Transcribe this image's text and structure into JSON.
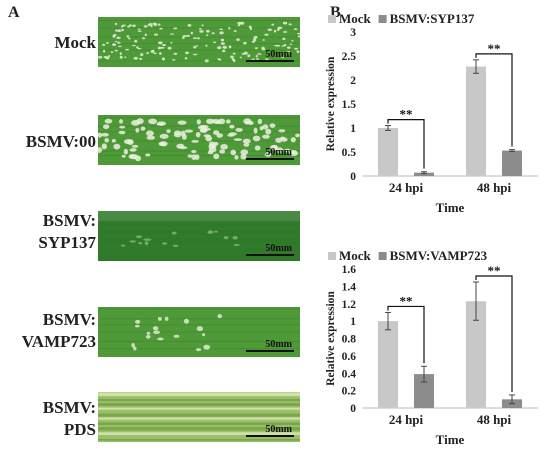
{
  "panels": {
    "a": "A",
    "b": "B"
  },
  "leaves": [
    {
      "label_lines": [
        "Mock"
      ],
      "scale": "50mm",
      "style": "mock"
    },
    {
      "label_lines": [
        "BSMV:00"
      ],
      "scale": "50mm",
      "style": "bsmv00"
    },
    {
      "label_lines": [
        "BSMV:",
        "SYP137"
      ],
      "scale": "50mm",
      "style": "syp"
    },
    {
      "label_lines": [
        "BSMV:",
        "VAMP723"
      ],
      "scale": "50mm",
      "style": "vamp"
    },
    {
      "label_lines": [
        "BSMV:",
        "PDS"
      ],
      "scale": "50mm",
      "style": "pds"
    }
  ],
  "colors": {
    "mock_series": "#c8c8c8",
    "treated_series": "#8c8c8c",
    "leaf_green": "#4f9a38"
  },
  "chart_data": [
    {
      "type": "bar",
      "categories": [
        "24 hpi",
        "48 hpi"
      ],
      "series": [
        {
          "name": "Mock",
          "values": [
            1.0,
            2.28
          ],
          "errors": [
            0.05,
            0.14
          ]
        },
        {
          "name": "BSMV:SYP137",
          "values": [
            0.07,
            0.53
          ],
          "errors": [
            0.02,
            0.02
          ]
        }
      ],
      "xlabel": "Time",
      "ylabel": "Relative expression",
      "ylim": [
        0,
        3
      ],
      "yticks": [
        "0",
        "0.5",
        "1",
        "1.5",
        "2",
        "2.5",
        "3"
      ],
      "significance": [
        "**",
        "**"
      ],
      "legend": "top",
      "grid": false
    },
    {
      "type": "bar",
      "categories": [
        "24 hpi",
        "48 hpi"
      ],
      "series": [
        {
          "name": "Mock",
          "values": [
            1.0,
            1.23
          ],
          "errors": [
            0.1,
            0.22
          ]
        },
        {
          "name": "BSMV:VAMP723",
          "values": [
            0.39,
            0.1
          ],
          "errors": [
            0.09,
            0.05
          ]
        }
      ],
      "xlabel": "Time",
      "ylabel": "Relative expression",
      "ylim": [
        0,
        1.6
      ],
      "yticks": [
        "0",
        "0.2",
        "0.4",
        "0.6",
        "0.8",
        "1",
        "1.2",
        "1.4",
        "1.6"
      ],
      "significance": [
        "**",
        "**"
      ],
      "legend": "top",
      "grid": false
    }
  ]
}
